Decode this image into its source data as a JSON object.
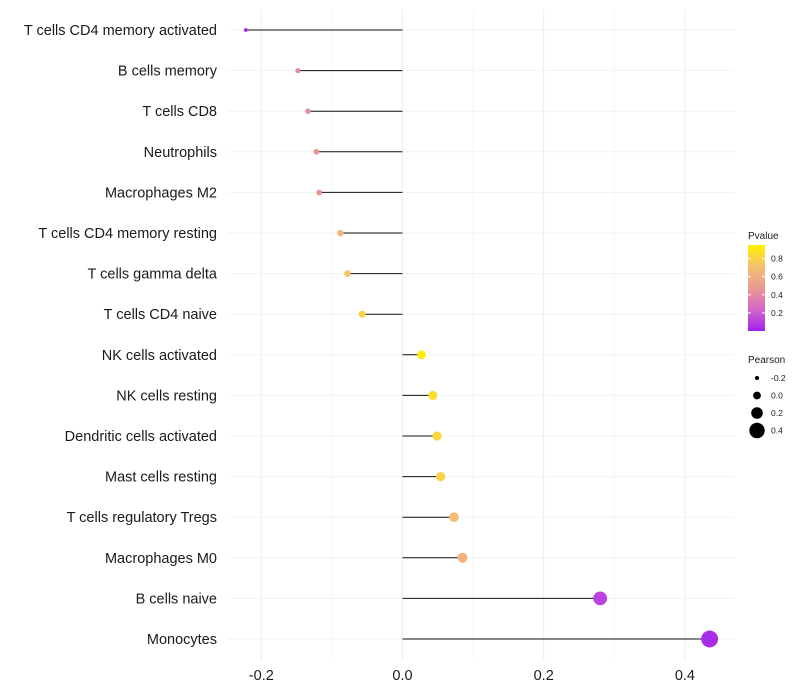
{
  "chart_data": {
    "type": "lollipop",
    "categories": [
      "T cells CD4 memory activated",
      "B cells memory",
      "T cells CD8",
      "Neutrophils",
      "Macrophages M2",
      "T cells CD4 memory resting",
      "T cells gamma delta",
      "T cells CD4 naive",
      "NK cells activated",
      "NK cells resting",
      "Dendritic cells activated",
      "Mast cells resting",
      "T cells regulatory  Tregs ",
      "Macrophages M0",
      "B cells naive",
      "Monocytes"
    ],
    "pearson": [
      -0.222,
      -0.148,
      -0.134,
      -0.122,
      -0.118,
      -0.088,
      -0.078,
      -0.057,
      0.027,
      0.043,
      0.049,
      0.054,
      0.073,
      0.085,
      0.28,
      0.435
    ],
    "pvalue": [
      0.02,
      0.38,
      0.42,
      0.45,
      0.47,
      0.65,
      0.72,
      0.8,
      0.93,
      0.86,
      0.83,
      0.8,
      0.7,
      0.62,
      0.12,
      0.04
    ],
    "xlim": [
      -0.25,
      0.5
    ],
    "x_ticks": [
      -0.2,
      0.0,
      0.2,
      0.4
    ],
    "x_tick_labels": [
      "-0.2",
      "0.0",
      "0.2",
      "0.4"
    ],
    "grid": true,
    "legend_color": {
      "title": "Pvalue",
      "ticks": [
        0.2,
        0.4,
        0.6,
        0.8
      ],
      "tick_labels": [
        "0.2",
        "0.4",
        "0.6",
        "0.8"
      ],
      "range": [
        0.0,
        0.95
      ],
      "colors": [
        "#a020f0",
        "#d468c8",
        "#e89a94",
        "#f5c070",
        "#fff200"
      ]
    },
    "legend_size": {
      "title": "Pearson",
      "values": [
        -0.2,
        0.0,
        0.2,
        0.4
      ],
      "labels": [
        "-0.2",
        "0.0",
        "0.2",
        "0.4"
      ]
    },
    "legend_position": "right",
    "title": "",
    "xlabel": "",
    "ylabel": ""
  }
}
